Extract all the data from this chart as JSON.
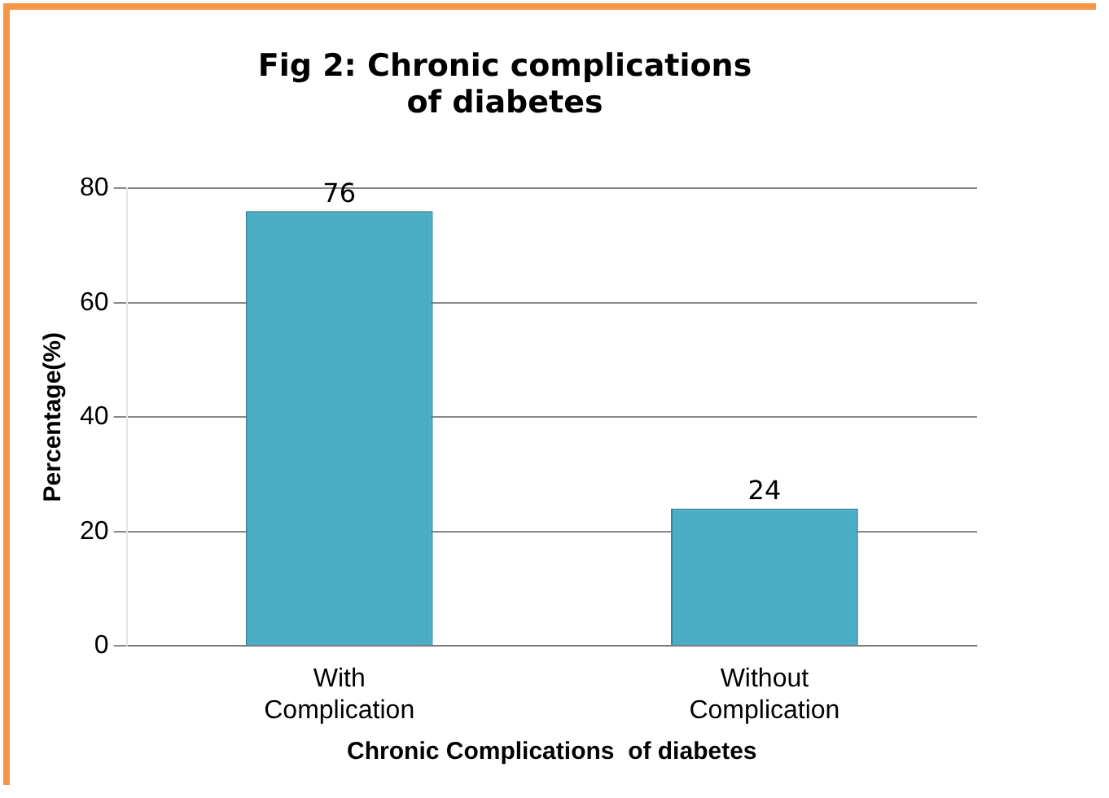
{
  "chart_data": {
    "type": "bar",
    "title": "Fig 2: Chronic complications of diabetes",
    "categories": [
      "With Complication",
      "Without Complication"
    ],
    "values": [
      76,
      24
    ],
    "color": "#4bacc6",
    "xlabel": "Chronic Complications  of diabetes",
    "ylabel": "Percentage(%)",
    "ylim": [
      0,
      80
    ],
    "yticks": [
      0,
      20,
      40,
      60,
      80
    ],
    "grid": "y",
    "data_labels": true,
    "legend": false
  }
}
